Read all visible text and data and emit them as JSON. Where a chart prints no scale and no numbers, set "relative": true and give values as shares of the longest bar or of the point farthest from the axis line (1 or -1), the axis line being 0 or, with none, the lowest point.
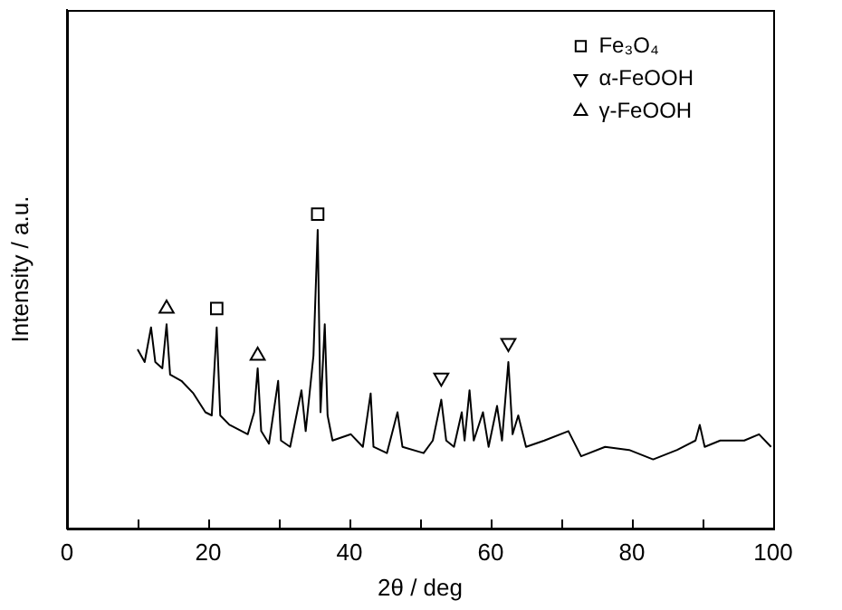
{
  "chart_data": {
    "type": "line",
    "xlabel": "2θ / deg",
    "ylabel": "Intensity / a.u.",
    "relative": true,
    "xlim": [
      0,
      100
    ],
    "xticks": [
      0,
      {
        "value": 10,
        "label": null
      },
      20,
      {
        "value": 30,
        "label": null
      },
      40,
      {
        "value": 50,
        "label": null
      },
      60,
      {
        "value": 70,
        "label": null
      },
      80,
      {
        "value": 90,
        "label": null
      },
      100
    ],
    "legend": "top right",
    "grid": false,
    "series": [
      {
        "color": "#000000",
        "marker": "none",
        "x": [
          10.0,
          11,
          11.9,
          12.5,
          13.5,
          14.1,
          14.6,
          16.2,
          17.9,
          19.6,
          20.5,
          21.2,
          21.7,
          23.0,
          25.6,
          26.5,
          27.0,
          27.5,
          28.6,
          29.9,
          30.3,
          31.6,
          33.2,
          33.8,
          34.9,
          35.5,
          35.9,
          36.5,
          36.9,
          37.6,
          40.2,
          41.9,
          43.0,
          43.4,
          45.3,
          46.8,
          47.5,
          50.5,
          51.8,
          53.0,
          53.7,
          54.8,
          55.9,
          56.3,
          57.0,
          57.6,
          58.9,
          59.7,
          60.9,
          61.6,
          62.5,
          63.1,
          63.9,
          65.0,
          67.6,
          71.0,
          72.8,
          76.2,
          79.6,
          83.0,
          86.4,
          89.0,
          89.6,
          90.3,
          92.5,
          95.9,
          98.0,
          99.7
        ],
        "values": [
          0.57,
          0.53,
          0.64,
          0.53,
          0.51,
          0.65,
          0.49,
          0.47,
          0.43,
          0.37,
          0.36,
          0.64,
          0.36,
          0.33,
          0.3,
          0.37,
          0.51,
          0.31,
          0.27,
          0.47,
          0.28,
          0.26,
          0.44,
          0.31,
          0.55,
          0.95,
          0.37,
          0.65,
          0.36,
          0.28,
          0.3,
          0.26,
          0.43,
          0.26,
          0.24,
          0.37,
          0.26,
          0.24,
          0.28,
          0.41,
          0.28,
          0.26,
          0.37,
          0.28,
          0.44,
          0.28,
          0.37,
          0.26,
          0.39,
          0.28,
          0.53,
          0.3,
          0.36,
          0.26,
          0.28,
          0.31,
          0.23,
          0.26,
          0.25,
          0.22,
          0.25,
          0.28,
          0.33,
          0.26,
          0.28,
          0.28,
          0.3,
          0.26
        ]
      },
      {
        "type": "scatter",
        "name": "Fe₃O₄",
        "color": "#000000",
        "marker": "square",
        "x": [
          21.2,
          35.5
        ],
        "values": [
          0.7,
          1.0
        ]
      },
      {
        "type": "scatter",
        "name": "α-FeOOH",
        "color": "#000000",
        "marker": "triangle-down",
        "x": [
          53.0,
          62.5
        ],
        "values": [
          0.48,
          0.59
        ]
      },
      {
        "type": "scatter",
        "name": "γ-FeOOH",
        "color": "#000000",
        "marker": "triangle",
        "x": [
          14.1,
          27.0
        ],
        "values": [
          0.7,
          0.55
        ]
      }
    ]
  }
}
